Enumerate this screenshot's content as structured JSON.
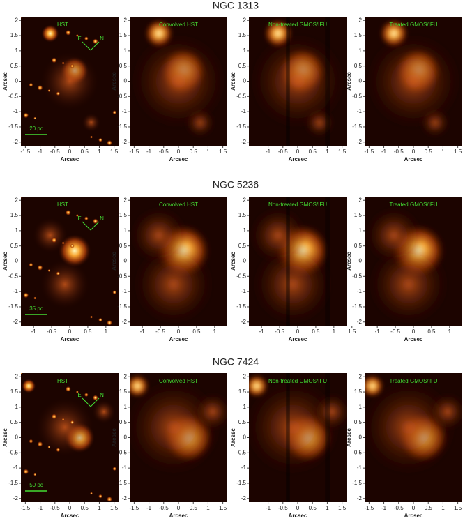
{
  "rows": [
    {
      "title": "NGC 1313",
      "scale_bar": "20 pc",
      "compass": {
        "east": "E",
        "north": "N"
      },
      "panels": [
        {
          "label": "HST",
          "xlabel": "Arcsec",
          "ylabel": "Arcsec",
          "xticks": [
            -1.5,
            -1,
            -0.5,
            0,
            0.5,
            1,
            1.5
          ],
          "yticks": [
            2,
            1.5,
            1,
            0.5,
            0,
            -0.5,
            -1,
            -1.5,
            -2
          ]
        },
        {
          "label": "Convolved HST",
          "xlabel": "Arcsec",
          "ylabel": "Arcsec",
          "xticks": [
            -1.5,
            -1,
            -0.5,
            0,
            0.5,
            1,
            1.5
          ],
          "yticks": [
            2,
            1.5,
            1,
            0.5,
            0,
            -0.5,
            -1,
            -1.5,
            -2
          ]
        },
        {
          "label": "Non-treated GMOS/IFU",
          "xlabel": "Arcsec",
          "ylabel": "Arcsec",
          "xticks": [
            -1,
            -0.5,
            0,
            0.5,
            1,
            1.5
          ],
          "yticks": [
            2,
            1.5,
            1,
            0.5,
            0,
            -0.5,
            -1,
            -1.5,
            -2
          ]
        },
        {
          "label": "Treated GMOS/IFU",
          "xlabel": "Arcsec",
          "ylabel": "Arcsec",
          "xticks": [
            -1.5,
            -1,
            -0.5,
            0,
            0.5,
            1,
            1.5
          ],
          "yticks": [
            2,
            1.5,
            1,
            0.5,
            0,
            -0.5,
            -1,
            -1.5,
            -2
          ]
        }
      ]
    },
    {
      "title": "NGC 5236",
      "scale_bar": "35 pc",
      "compass": {
        "east": "E",
        "north": "N"
      },
      "panels": [
        {
          "label": "HST",
          "xlabel": "Arcsec",
          "ylabel": "Arcsec",
          "xticks": [
            -1,
            -0.5,
            0,
            0.5,
            1
          ],
          "yticks": [
            2,
            1.5,
            1,
            0.5,
            0,
            -0.5,
            -1,
            -1.5,
            -2
          ]
        },
        {
          "label": "Convolved HST",
          "xlabel": "Arcsec",
          "ylabel": "Arcsec",
          "xticks": [
            -1,
            -0.5,
            0,
            0.5,
            1
          ],
          "yticks": [
            2,
            1.5,
            1,
            0.5,
            0,
            -0.5,
            -1,
            -1.5,
            -2
          ]
        },
        {
          "label": "Non-treated GMOS/IFU",
          "xlabel": "Arcsec",
          "ylabel": "Arcsec",
          "xticks": [
            -1,
            -0.5,
            0,
            0.5,
            1,
            1.5
          ],
          "yticks": [
            2,
            1.5,
            1,
            0.5,
            0,
            -0.5,
            -1,
            -1.5,
            -2
          ]
        },
        {
          "label": "Treated GMOS/IFU",
          "xlabel": "Arcsec",
          "ylabel": "Arcsec",
          "xticks": [
            -1,
            -0.5,
            0,
            0.5,
            1
          ],
          "yticks": [
            2,
            1.5,
            1,
            0.5,
            0,
            -0.5,
            -1,
            -1.5,
            -2
          ]
        }
      ]
    },
    {
      "title": "NGC 7424",
      "scale_bar": "50 pc",
      "compass": {
        "east": "E",
        "north": "N"
      },
      "panels": [
        {
          "label": "HST",
          "xlabel": "Arcsec",
          "ylabel": "Arcsec",
          "xticks": [
            -1.5,
            -1,
            -0.5,
            0,
            0.5,
            1,
            1.5
          ],
          "yticks": [
            2,
            1.5,
            1,
            0.5,
            0,
            -0.5,
            -1,
            -1.5,
            -2
          ]
        },
        {
          "label": "Convolved HST",
          "xlabel": "Arcsec",
          "ylabel": "Arcsec",
          "xticks": [
            -1.5,
            -1,
            -0.5,
            0,
            0.5,
            1,
            1.5
          ],
          "yticks": [
            2,
            1.5,
            1,
            0.5,
            0,
            -0.5,
            -1,
            -1.5,
            -2
          ]
        },
        {
          "label": "Non-treated GMOS/IFU",
          "xlabel": "Arcsec",
          "ylabel": "Arcsec",
          "xticks": [
            -1,
            -0.5,
            0,
            0.5,
            1,
            1.5
          ],
          "yticks": [
            2,
            1.5,
            1,
            0.5,
            0,
            -0.5,
            -1,
            -1.5,
            -2
          ]
        },
        {
          "label": "Treated GMOS/IFU",
          "xlabel": "Arcsec",
          "ylabel": "Arcsec",
          "xticks": [
            -1.5,
            -1,
            -0.5,
            0,
            0.5,
            1,
            1.5
          ],
          "yticks": [
            2,
            1.5,
            1,
            0.5,
            0,
            -0.5,
            -1,
            -1.5,
            -2
          ]
        }
      ]
    }
  ]
}
